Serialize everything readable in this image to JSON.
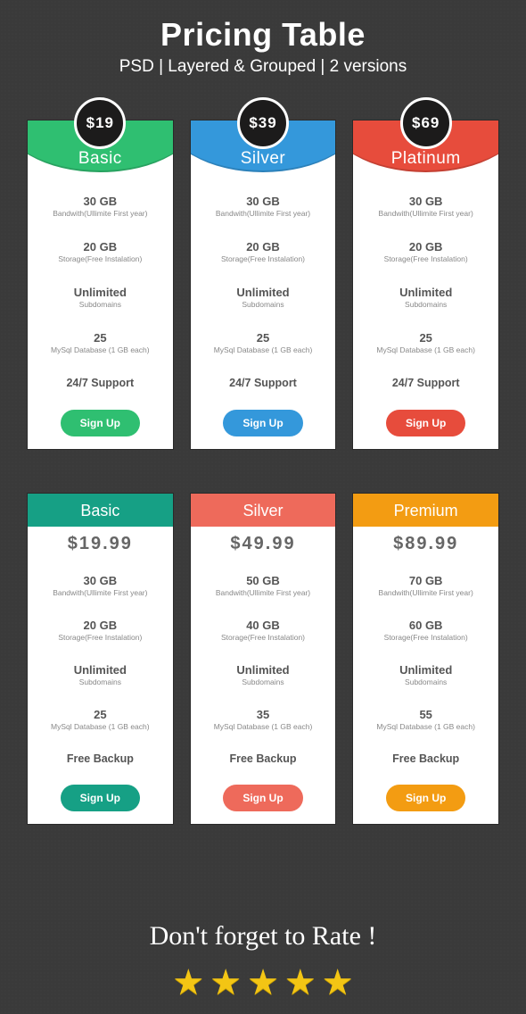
{
  "header": {
    "title": "Pricing Table",
    "subtitle": "PSD | Layered & Grouped | 2 versions"
  },
  "colors": {
    "bg": "#3a3a3a",
    "card_bg": "#ffffff",
    "badge_bg": "#1c1b1b",
    "text_muted": "#666666",
    "text_sub": "#888888",
    "green": "#2fbf71",
    "blue": "#3498db",
    "red": "#e74c3c",
    "teal": "#16a085",
    "salmon": "#ee6a5b",
    "orange": "#f39c12",
    "star": "#f3c514"
  },
  "row1": [
    {
      "price": "$19",
      "tier": "Basic",
      "header_color": "#2fbf71",
      "button_color": "#2fbf71",
      "features": [
        {
          "big": "30 GB",
          "small": "Bandwith(Ullimite First year)"
        },
        {
          "big": "20 GB",
          "small": "Storage(Free Instalation)"
        },
        {
          "big": "Unlimited",
          "small": "Subdomains"
        },
        {
          "big": "25",
          "small": "MySql Database (1 GB each)"
        },
        {
          "single": "24/7 Support"
        }
      ],
      "cta": "Sign Up"
    },
    {
      "price": "$39",
      "tier": "Silver",
      "header_color": "#3498db",
      "button_color": "#3498db",
      "features": [
        {
          "big": "30 GB",
          "small": "Bandwith(Ullimite First year)"
        },
        {
          "big": "20 GB",
          "small": "Storage(Free Instalation)"
        },
        {
          "big": "Unlimited",
          "small": "Subdomains"
        },
        {
          "big": "25",
          "small": "MySql Database (1 GB each)"
        },
        {
          "single": "24/7 Support"
        }
      ],
      "cta": "Sign Up"
    },
    {
      "price": "$69",
      "tier": "Platinum",
      "header_color": "#e74c3c",
      "button_color": "#e74c3c",
      "features": [
        {
          "big": "30 GB",
          "small": "Bandwith(Ullimite First year)"
        },
        {
          "big": "20 GB",
          "small": "Storage(Free Instalation)"
        },
        {
          "big": "Unlimited",
          "small": "Subdomains"
        },
        {
          "big": "25",
          "small": "MySql Database (1 GB each)"
        },
        {
          "single": "24/7 Support"
        }
      ],
      "cta": "Sign Up"
    }
  ],
  "row2": [
    {
      "tier": "Basic",
      "price": "$19.99",
      "header_color": "#16a085",
      "button_color": "#16a085",
      "features": [
        {
          "big": "30 GB",
          "small": "Bandwith(Ullimite First year)"
        },
        {
          "big": "20 GB",
          "small": "Storage(Free Instalation)"
        },
        {
          "big": "Unlimited",
          "small": "Subdomains"
        },
        {
          "big": "25",
          "small": "MySql Database (1 GB each)"
        },
        {
          "single": "Free Backup"
        }
      ],
      "cta": "Sign Up"
    },
    {
      "tier": "Silver",
      "price": "$49.99",
      "header_color": "#ee6a5b",
      "button_color": "#ee6a5b",
      "features": [
        {
          "big": "50 GB",
          "small": "Bandwith(Ullimite First year)"
        },
        {
          "big": "40 GB",
          "small": "Storage(Free Instalation)"
        },
        {
          "big": "Unlimited",
          "small": "Subdomains"
        },
        {
          "big": "35",
          "small": "MySql Database (1 GB each)"
        },
        {
          "single": "Free Backup"
        }
      ],
      "cta": "Sign Up"
    },
    {
      "tier": "Premium",
      "price": "$89.99",
      "header_color": "#f39c12",
      "button_color": "#f39c12",
      "features": [
        {
          "big": "70 GB",
          "small": "Bandwith(Ullimite First year)"
        },
        {
          "big": "60 GB",
          "small": "Storage(Free Instalation)"
        },
        {
          "big": "Unlimited",
          "small": "Subdomains"
        },
        {
          "big": "55",
          "small": "MySql Database (1 GB each)"
        },
        {
          "single": "Free Backup"
        }
      ],
      "cta": "Sign Up"
    }
  ],
  "footer": {
    "text": "Don't forget to Rate !",
    "star_count": 5
  }
}
